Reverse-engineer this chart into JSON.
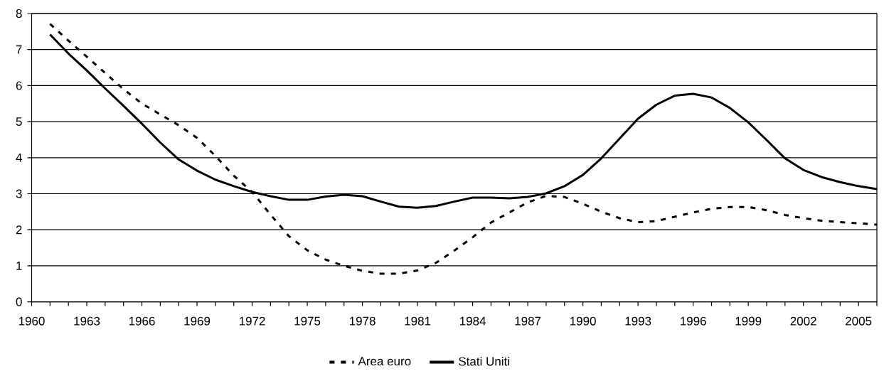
{
  "chart_data": {
    "type": "line",
    "x": [
      1961,
      1962,
      1963,
      1964,
      1965,
      1966,
      1967,
      1968,
      1969,
      1970,
      1971,
      1972,
      1973,
      1974,
      1975,
      1976,
      1977,
      1978,
      1979,
      1980,
      1981,
      1982,
      1983,
      1984,
      1985,
      1986,
      1987,
      1988,
      1989,
      1990,
      1991,
      1992,
      1993,
      1994,
      1995,
      1996,
      1997,
      1998,
      1999,
      2000,
      2001,
      2002,
      2003,
      2004,
      2005,
      2006
    ],
    "series": [
      {
        "name": "Area euro",
        "color": "#000000",
        "line_style": "dashed",
        "values": [
          7.71,
          7.25,
          6.8,
          6.35,
          5.9,
          5.5,
          5.2,
          4.9,
          4.55,
          4.05,
          3.5,
          3.05,
          2.42,
          1.82,
          1.43,
          1.17,
          1.0,
          0.86,
          0.78,
          0.78,
          0.87,
          1.08,
          1.42,
          1.79,
          2.2,
          2.48,
          2.76,
          2.94,
          2.91,
          2.72,
          2.5,
          2.32,
          2.21,
          2.24,
          2.36,
          2.48,
          2.58,
          2.63,
          2.63,
          2.54,
          2.41,
          2.32,
          2.25,
          2.21,
          2.18,
          2.14
        ]
      },
      {
        "name": "Stati Uniti",
        "color": "#000000",
        "line_style": "solid",
        "values": [
          7.42,
          6.89,
          6.42,
          5.92,
          5.44,
          4.94,
          4.42,
          3.95,
          3.64,
          3.39,
          3.21,
          3.05,
          2.93,
          2.83,
          2.83,
          2.92,
          2.97,
          2.93,
          2.78,
          2.64,
          2.61,
          2.66,
          2.78,
          2.89,
          2.89,
          2.87,
          2.91,
          3.01,
          3.21,
          3.52,
          3.98,
          4.53,
          5.08,
          5.47,
          5.72,
          5.77,
          5.67,
          5.38,
          4.98,
          4.49,
          3.98,
          3.66,
          3.46,
          3.32,
          3.21,
          3.13
        ]
      }
    ],
    "xlim": [
      1960,
      2006
    ],
    "xticks": [
      1960,
      {
        "value": 1961,
        "label": null
      },
      {
        "value": 1962,
        "label": null
      },
      1963,
      {
        "value": 1964,
        "label": null
      },
      {
        "value": 1965,
        "label": null
      },
      1966,
      {
        "value": 1967,
        "label": null
      },
      {
        "value": 1968,
        "label": null
      },
      1969,
      {
        "value": 1970,
        "label": null
      },
      {
        "value": 1971,
        "label": null
      },
      1972,
      {
        "value": 1973,
        "label": null
      },
      {
        "value": 1974,
        "label": null
      },
      1975,
      {
        "value": 1976,
        "label": null
      },
      {
        "value": 1977,
        "label": null
      },
      1978,
      {
        "value": 1979,
        "label": null
      },
      {
        "value": 1980,
        "label": null
      },
      1981,
      {
        "value": 1982,
        "label": null
      },
      {
        "value": 1983,
        "label": null
      },
      1984,
      {
        "value": 1985,
        "label": null
      },
      {
        "value": 1986,
        "label": null
      },
      1987,
      {
        "value": 1988,
        "label": null
      },
      {
        "value": 1989,
        "label": null
      },
      1990,
      {
        "value": 1991,
        "label": null
      },
      {
        "value": 1992,
        "label": null
      },
      1993,
      {
        "value": 1994,
        "label": null
      },
      {
        "value": 1995,
        "label": null
      },
      1996,
      {
        "value": 1997,
        "label": null
      },
      {
        "value": 1998,
        "label": null
      },
      1999,
      {
        "value": 2000,
        "label": null
      },
      {
        "value": 2001,
        "label": null
      },
      2002,
      {
        "value": 2003,
        "label": null
      },
      {
        "value": 2004,
        "label": null
      },
      2005,
      {
        "value": 2006,
        "label": null
      }
    ],
    "ylim": [
      0,
      8
    ],
    "yticks": [
      0,
      1,
      2,
      3,
      4,
      5,
      6,
      7,
      8
    ],
    "grid": "y",
    "legend": "bottom",
    "marker": "none"
  }
}
